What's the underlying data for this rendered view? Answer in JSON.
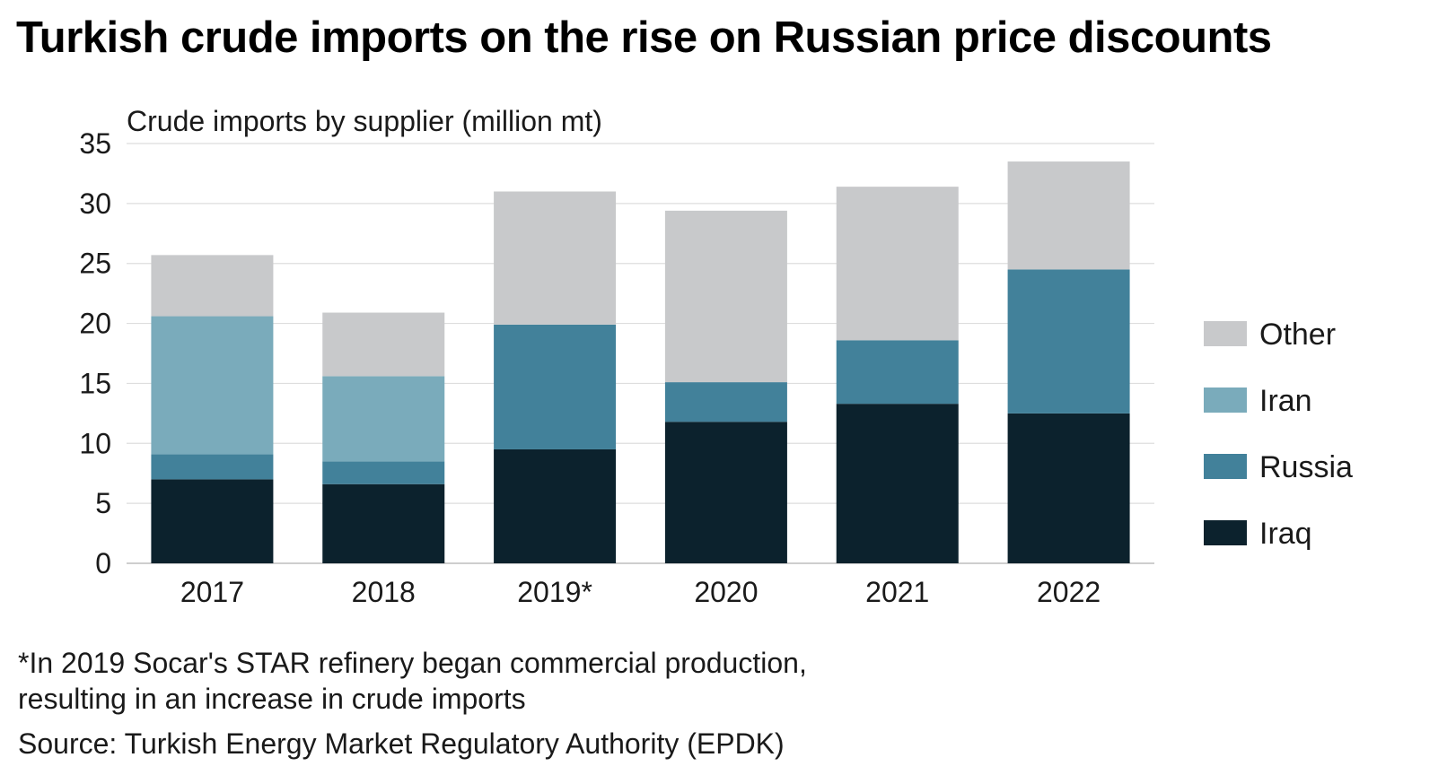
{
  "title": "Turkish crude imports on the rise on Russian price discounts",
  "footnote_line1": "*In 2019 Socar's STAR refinery began commercial production,",
  "footnote_line2": "resulting in an increase in crude imports",
  "source": "Source: Turkish Energy Market Regulatory Authority (EPDK)",
  "chart_data": {
    "type": "bar",
    "stacked": true,
    "title": "Crude imports by supplier (million mt)",
    "xlabel": "",
    "ylabel": "Crude imports by supplier (million mt)",
    "categories": [
      "2017",
      "2018",
      "2019*",
      "2020",
      "2021",
      "2022"
    ],
    "ylim": [
      0,
      35
    ],
    "yticks": [
      "0",
      "5",
      "10",
      "15",
      "20",
      "25",
      "30",
      "35"
    ],
    "grid": true,
    "legend_position": "right",
    "series": [
      {
        "name": "Iraq",
        "color": "#0c222d",
        "values": [
          7.0,
          6.6,
          9.5,
          11.8,
          13.3,
          12.5
        ]
      },
      {
        "name": "Russia",
        "color": "#42819a",
        "values": [
          2.1,
          1.9,
          10.4,
          3.3,
          5.3,
          12.0
        ]
      },
      {
        "name": "Iran",
        "color": "#7aabbb",
        "values": [
          11.5,
          7.1,
          0.0,
          0.0,
          0.0,
          0.0
        ]
      },
      {
        "name": "Other",
        "color": "#c8c9cb",
        "values": [
          5.1,
          5.3,
          11.1,
          14.3,
          12.8,
          9.0
        ]
      }
    ],
    "legend_order": [
      "Other",
      "Iran",
      "Russia",
      "Iraq"
    ]
  }
}
